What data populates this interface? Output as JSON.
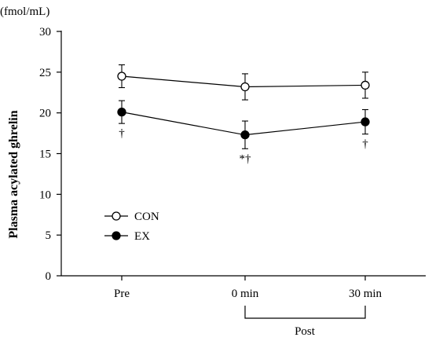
{
  "chart_data": {
    "type": "line",
    "units": "(fmol/mL)",
    "ylabel": "Plasma acylated ghrelin",
    "xlabel": "",
    "categories": [
      "Pre",
      "0 min",
      "30 min"
    ],
    "group_label": "Post",
    "ylim": [
      0,
      30
    ],
    "yticks": [
      "0",
      "5",
      "10",
      "15",
      "20",
      "25",
      "30"
    ],
    "grid": false,
    "legend_position": "lower-left",
    "series": [
      {
        "name": "CON",
        "marker": "open-circle",
        "color": "#000000",
        "values": [
          24.5,
          23.2,
          23.4
        ],
        "errors": [
          1.4,
          1.6,
          1.6
        ]
      },
      {
        "name": "EX",
        "marker": "filled-circle",
        "color": "#000000",
        "values": [
          20.1,
          17.3,
          18.9
        ],
        "errors": [
          1.4,
          1.7,
          1.5
        ]
      }
    ],
    "annotations": [
      {
        "category_index": 0,
        "text": "†"
      },
      {
        "category_index": 1,
        "text": "*†"
      },
      {
        "category_index": 2,
        "text": "†"
      }
    ]
  }
}
